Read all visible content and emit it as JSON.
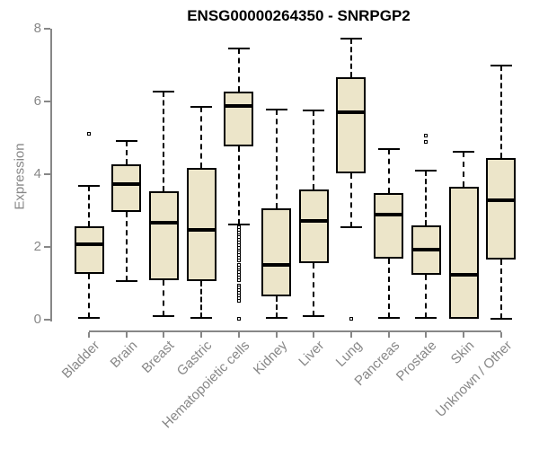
{
  "chart_data": {
    "type": "box",
    "title": "ENSG00000264350 - SNRPGP2",
    "ylabel": "Expression",
    "xlabel": "",
    "ylim": [
      0,
      8
    ],
    "yticks": [
      "0",
      "2",
      "4",
      "6",
      "8"
    ],
    "grid": false,
    "legend": null,
    "categories": [
      "Bladder",
      "Brain",
      "Breast",
      "Gastric",
      "Hematopoietic cells",
      "Kidney",
      "Liver",
      "Lung",
      "Pancreas",
      "Prostate",
      "Skin",
      "Unknown / Other"
    ],
    "boxes": [
      {
        "category": "Bladder",
        "whisker_low": 0.05,
        "q1": 1.25,
        "median": 2.08,
        "q3": 2.56,
        "whisker_high": 3.67,
        "outliers": [
          5.11
        ]
      },
      {
        "category": "Brain",
        "whisker_low": 1.07,
        "q1": 2.96,
        "median": 3.72,
        "q3": 4.28,
        "whisker_high": 4.92,
        "outliers": []
      },
      {
        "category": "Breast",
        "whisker_low": 0.09,
        "q1": 1.09,
        "median": 2.67,
        "q3": 3.54,
        "whisker_high": 6.27,
        "outliers": []
      },
      {
        "category": "Gastric",
        "whisker_low": 0.05,
        "q1": 1.05,
        "median": 2.48,
        "q3": 4.17,
        "whisker_high": 5.85,
        "outliers": []
      },
      {
        "category": "Hematopoietic cells",
        "whisker_low": 2.62,
        "q1": 4.77,
        "median": 5.87,
        "q3": 6.27,
        "whisker_high": 7.45,
        "outliers": [
          2.54,
          2.47,
          2.4,
          2.33,
          2.26,
          2.19,
          2.12,
          2.05,
          1.98,
          1.91,
          1.84,
          1.77,
          1.7,
          1.63,
          1.51,
          1.44,
          1.37,
          1.3,
          1.23,
          1.16,
          1.09,
          0.95,
          0.88,
          0.81,
          0.74,
          0.67,
          0.6,
          0.52,
          0.02
        ]
      },
      {
        "category": "Kidney",
        "whisker_low": 0.04,
        "q1": 0.64,
        "median": 1.51,
        "q3": 3.07,
        "whisker_high": 5.77,
        "outliers": []
      },
      {
        "category": "Liver",
        "whisker_low": 0.1,
        "q1": 1.56,
        "median": 2.71,
        "q3": 3.59,
        "whisker_high": 5.75,
        "outliers": []
      },
      {
        "category": "Lung",
        "whisker_low": 2.55,
        "q1": 4.02,
        "median": 5.7,
        "q3": 6.67,
        "whisker_high": 7.73,
        "outliers": [
          0.02
        ]
      },
      {
        "category": "Pancreas",
        "whisker_low": 0.06,
        "q1": 1.67,
        "median": 2.9,
        "q3": 3.48,
        "whisker_high": 4.7,
        "outliers": []
      },
      {
        "category": "Prostate",
        "whisker_low": 0.04,
        "q1": 1.23,
        "median": 1.92,
        "q3": 2.59,
        "whisker_high": 4.1,
        "outliers": [
          4.88,
          5.05
        ]
      },
      {
        "category": "Skin",
        "whisker_low": 0.02,
        "q1": 0.02,
        "median": 1.24,
        "q3": 3.66,
        "whisker_high": 4.62,
        "outliers": []
      },
      {
        "category": "Unknown / Other",
        "whisker_low": 0.02,
        "q1": 1.65,
        "median": 3.28,
        "q3": 4.44,
        "whisker_high": 6.99,
        "outliers": []
      }
    ],
    "colors": {
      "box_fill": "#ECE5C9",
      "box_border": "#000000",
      "median": "#000000",
      "whisker": "#000000",
      "axis": "#878787",
      "tick_label": "#878787",
      "title": "#000000",
      "background": "#FFFFFF"
    }
  }
}
